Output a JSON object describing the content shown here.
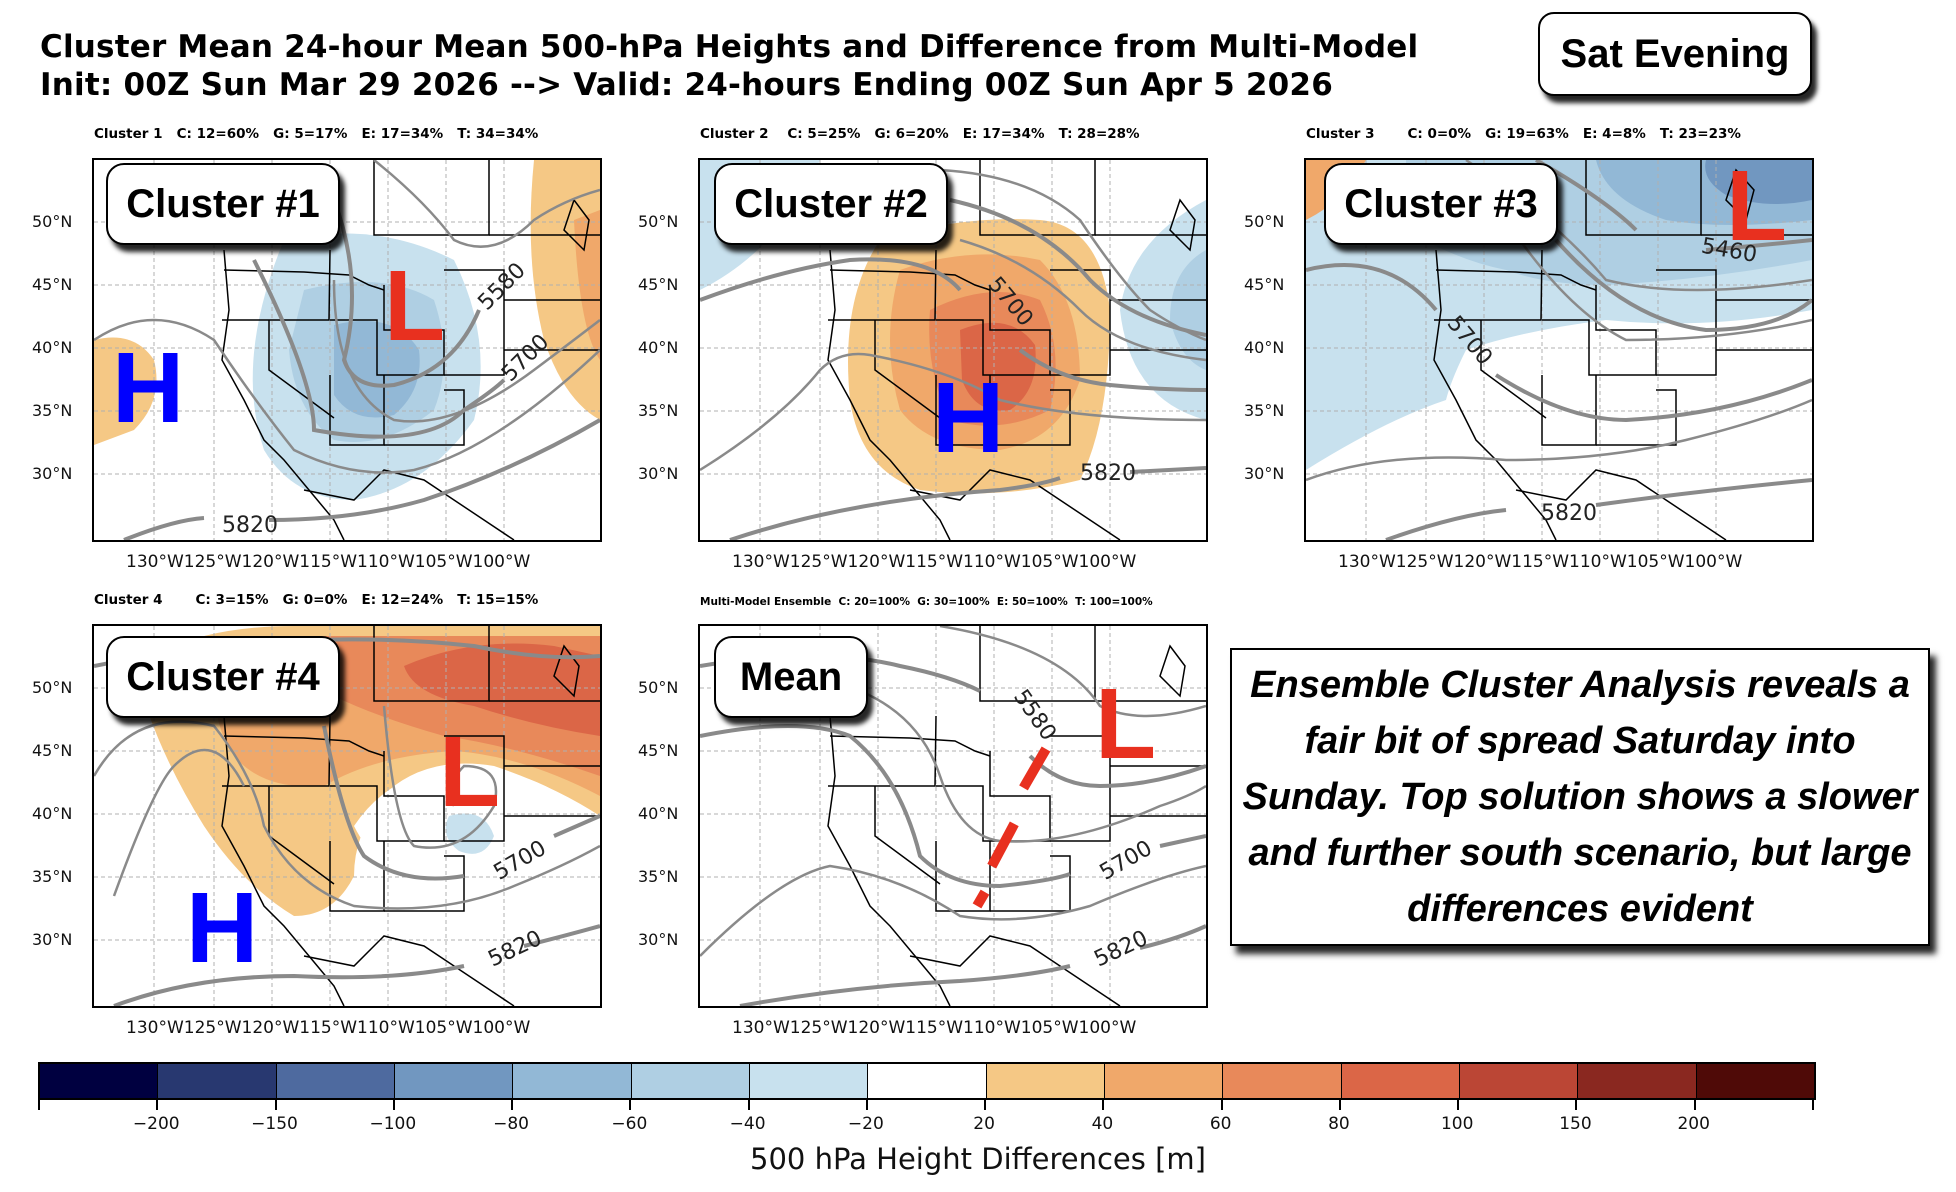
{
  "header": {
    "title_line1": "Cluster Mean 24-hour Mean 500-hPa Heights and Difference from Multi-Model",
    "title_line2": "Init: 00Z Sun Mar 29 2026 --> Valid: 24-hours Ending 00Z Sun Apr 5 2026",
    "time_label": "Sat Evening"
  },
  "axes": {
    "lat_labels": [
      "50°N",
      "45°N",
      "40°N",
      "35°N",
      "30°N"
    ],
    "lon_labels": "130°W125°W120°W115°W110°W105°W100°W"
  },
  "panels": [
    {
      "id": "cluster1",
      "header": "Cluster 1   C: 12=60%   G: 5=17%   E: 17=34%   T: 34=34%",
      "callout": "Cluster #1",
      "contour_labels": [
        "5580",
        "5700",
        "5820"
      ],
      "highs": [
        "H"
      ],
      "lows": [
        "L"
      ]
    },
    {
      "id": "cluster2",
      "header": "Cluster 2    C: 5=25%   G: 6=20%   E: 17=34%   T: 28=28%",
      "callout": "Cluster #2",
      "contour_labels": [
        "5700",
        "5820"
      ],
      "highs": [
        "H"
      ],
      "lows": []
    },
    {
      "id": "cluster3",
      "header": "Cluster 3       C: 0=0%   G: 19=63%   E: 4=8%   T: 23=23%",
      "callout": "Cluster #3",
      "contour_labels": [
        "5460",
        "5700",
        "5820"
      ],
      "highs": [],
      "lows": [
        "L"
      ]
    },
    {
      "id": "cluster4",
      "header": "Cluster 4       C: 3=15%   G: 0=0%   E: 12=24%   T: 15=15%",
      "callout": "Cluster #4",
      "contour_labels": [
        "5700",
        "5820"
      ],
      "highs": [
        "H"
      ],
      "lows": [
        "L"
      ]
    },
    {
      "id": "mean",
      "header": "Multi-Model Ensemble  C: 20=100%  G: 30=100%  E: 50=100%  T: 100=100%",
      "callout": "Mean",
      "contour_labels": [
        "5580",
        "5700",
        "5820"
      ],
      "highs": [],
      "lows": [
        "L"
      ]
    }
  ],
  "summary": "Ensemble Cluster Analysis reveals a fair bit of spread Saturday into Sunday. Top solution shows a slower and further south scenario, but large differences evident",
  "colorbar": {
    "title": "500 hPa Height Differences [m]",
    "tick_labels": [
      "−200",
      "−150",
      "−100",
      "−80",
      "−60",
      "−40",
      "−20",
      "20",
      "40",
      "60",
      "80",
      "100",
      "150",
      "200"
    ],
    "colors": [
      "#000040",
      "#283870",
      "#4e6a9f",
      "#7197c0",
      "#92b8d6",
      "#afcfe3",
      "#c8e1ee",
      "#ffffff",
      "#f5c885",
      "#f0a86a",
      "#e8895a",
      "#db6647",
      "#bb4635",
      "#8a2820",
      "#4f0a07"
    ]
  },
  "colors": {
    "high_marker": "#0000ff",
    "low_marker": "#e8301f",
    "contour": "#8a8a8a"
  }
}
